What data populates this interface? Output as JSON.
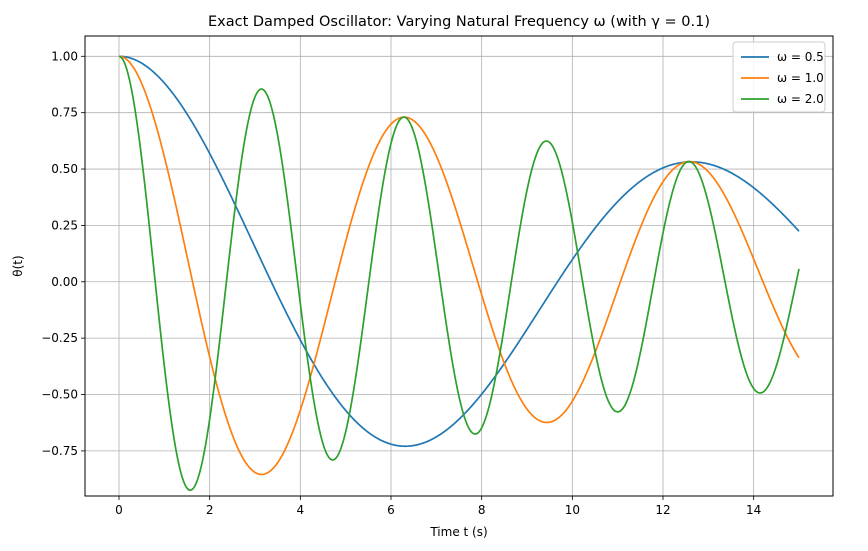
{
  "chart_data": {
    "type": "line",
    "title": "Exact Damped Oscillator: Varying Natural Frequency ω (with γ = 0.1)",
    "xlabel": "Time t (s)",
    "ylabel": "θ(t)",
    "xlim": [
      -0.75,
      15.75
    ],
    "ylim": [
      -0.95,
      1.09
    ],
    "xticks": [
      0,
      2,
      4,
      6,
      8,
      10,
      12,
      14
    ],
    "yticks": [
      -0.75,
      -0.5,
      -0.25,
      0.0,
      0.25,
      0.5,
      0.75,
      1.0
    ],
    "grid": true,
    "legend_position": "top-right",
    "gamma": 0.1,
    "x_range": [
      0,
      15
    ],
    "series": [
      {
        "name": "ω = 0.5",
        "omega": 0.5,
        "color": "#1f77b4"
      },
      {
        "name": "ω = 1.0",
        "omega": 1.0,
        "color": "#ff7f0e"
      },
      {
        "name": "ω = 2.0",
        "omega": 2.0,
        "color": "#2ca02c"
      }
    ]
  }
}
